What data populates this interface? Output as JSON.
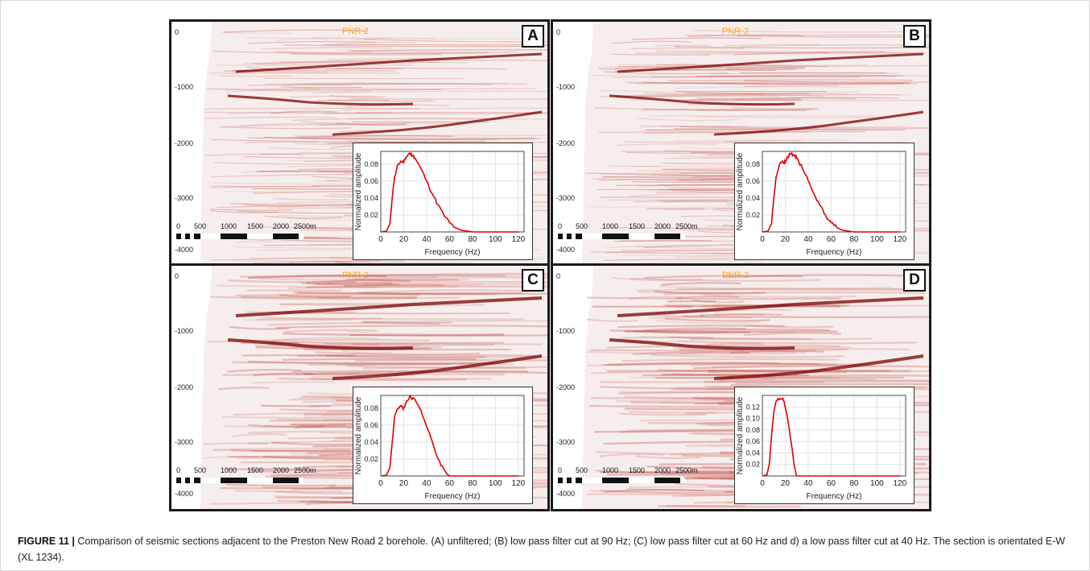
{
  "figure": {
    "caption_label": "FIGURE 11 |",
    "caption_text": "Comparison of seismic sections adjacent to the Preston New Road 2 borehole. (A) unfiltered; (B) low pass filter cut at 90 Hz; (C) low pass filter cut at 60 Hz and d) a low pass filter cut at 40 Hz. The section is orientated E-W (XL 1234)."
  },
  "panels": [
    {
      "letter": "A",
      "well_label": "PNR-2",
      "filter": "unfiltered"
    },
    {
      "letter": "B",
      "well_label": "PNR-2",
      "filter": "low pass 90 Hz"
    },
    {
      "letter": "C",
      "well_label": "PNR-2",
      "filter": "low pass 60 Hz"
    },
    {
      "letter": "D",
      "well_label": "PNR-2",
      "filter": "low pass 40 Hz"
    }
  ],
  "section_axis": {
    "depth_ticks": [
      "0",
      "-1000",
      "-2000",
      "-3000",
      "-4000"
    ]
  },
  "scale_bar": {
    "labels": [
      "0",
      "500",
      "1000",
      "1500",
      "2000",
      "2500m"
    ]
  },
  "colors": {
    "seismic_dark": "#7a0000",
    "seismic_mid": "#c24a44",
    "spectrum_line": "#e00000",
    "well_label": "#ffa500"
  },
  "chart_data": [
    {
      "type": "line",
      "panel": "A",
      "xlabel": "Frequency (Hz)",
      "ylabel": "Normalized amplitude",
      "xlim": [
        0,
        125
      ],
      "ylim": [
        0,
        0.095
      ],
      "xticks": [
        0,
        20,
        40,
        60,
        80,
        100,
        120
      ],
      "yticks": [
        0.02,
        0.04,
        0.06,
        0.08
      ],
      "ytick_labels": [
        "0.02",
        "0.04",
        "0.06",
        "0.08"
      ],
      "grid": true,
      "x": [
        0,
        5,
        8,
        10,
        12,
        15,
        18,
        20,
        22,
        25,
        28,
        30,
        35,
        40,
        45,
        50,
        55,
        60,
        65,
        70,
        75,
        80,
        90,
        100,
        110,
        120
      ],
      "y": [
        0,
        0.001,
        0.01,
        0.04,
        0.065,
        0.08,
        0.083,
        0.082,
        0.088,
        0.093,
        0.09,
        0.087,
        0.075,
        0.06,
        0.045,
        0.032,
        0.02,
        0.011,
        0.005,
        0.002,
        0.001,
        0,
        0,
        0,
        0,
        0
      ]
    },
    {
      "type": "line",
      "panel": "B",
      "xlabel": "Frequency (Hz)",
      "ylabel": "Normalized amplitude",
      "xlim": [
        0,
        125
      ],
      "ylim": [
        0,
        0.095
      ],
      "xticks": [
        0,
        20,
        40,
        60,
        80,
        100,
        120
      ],
      "yticks": [
        0.02,
        0.04,
        0.06,
        0.08
      ],
      "ytick_labels": [
        "0.02",
        "0.04",
        "0.06",
        "0.08"
      ],
      "grid": true,
      "x": [
        0,
        5,
        8,
        10,
        12,
        15,
        18,
        20,
        22,
        25,
        28,
        30,
        35,
        40,
        45,
        50,
        55,
        60,
        65,
        70,
        75,
        80,
        90,
        100,
        110,
        120
      ],
      "y": [
        0,
        0.001,
        0.01,
        0.04,
        0.065,
        0.08,
        0.083,
        0.082,
        0.088,
        0.093,
        0.09,
        0.087,
        0.075,
        0.06,
        0.045,
        0.032,
        0.02,
        0.011,
        0.005,
        0.002,
        0.001,
        0,
        0,
        0,
        0,
        0
      ]
    },
    {
      "type": "line",
      "panel": "C",
      "xlabel": "Frequency (Hz)",
      "ylabel": "Normalized amplitude",
      "xlim": [
        0,
        125
      ],
      "ylim": [
        0,
        0.095
      ],
      "xticks": [
        0,
        20,
        40,
        60,
        80,
        100,
        120
      ],
      "yticks": [
        0.02,
        0.04,
        0.06,
        0.08
      ],
      "ytick_labels": [
        "0.02",
        "0.04",
        "0.06",
        "0.08"
      ],
      "grid": true,
      "x": [
        0,
        5,
        8,
        10,
        12,
        15,
        18,
        20,
        22,
        25,
        28,
        30,
        35,
        40,
        45,
        50,
        55,
        58,
        60,
        70,
        80,
        90,
        100,
        110,
        120
      ],
      "y": [
        0,
        0.001,
        0.01,
        0.04,
        0.07,
        0.08,
        0.082,
        0.08,
        0.086,
        0.093,
        0.092,
        0.09,
        0.078,
        0.058,
        0.04,
        0.02,
        0.008,
        0.002,
        0,
        0,
        0,
        0,
        0,
        0,
        0
      ]
    },
    {
      "type": "line",
      "panel": "D",
      "xlabel": "Frequency (Hz)",
      "ylabel": "Normalized amplitude",
      "xlim": [
        0,
        125
      ],
      "ylim": [
        0,
        0.14
      ],
      "xticks": [
        0,
        20,
        40,
        60,
        80,
        100,
        120
      ],
      "yticks": [
        0.02,
        0.04,
        0.06,
        0.08,
        0.1,
        0.12
      ],
      "ytick_labels": [
        "0.02",
        "0.04",
        "0.06",
        "0.08",
        "0.10",
        "0.12"
      ],
      "grid": true,
      "x": [
        0,
        4,
        6,
        8,
        10,
        12,
        15,
        18,
        20,
        22,
        25,
        28,
        30,
        40,
        50,
        60,
        70,
        80,
        90,
        100,
        110,
        120
      ],
      "y": [
        0,
        0.002,
        0.02,
        0.07,
        0.11,
        0.13,
        0.135,
        0.135,
        0.12,
        0.1,
        0.06,
        0.015,
        0,
        0,
        0,
        0,
        0,
        0,
        0,
        0,
        0,
        0
      ]
    }
  ]
}
